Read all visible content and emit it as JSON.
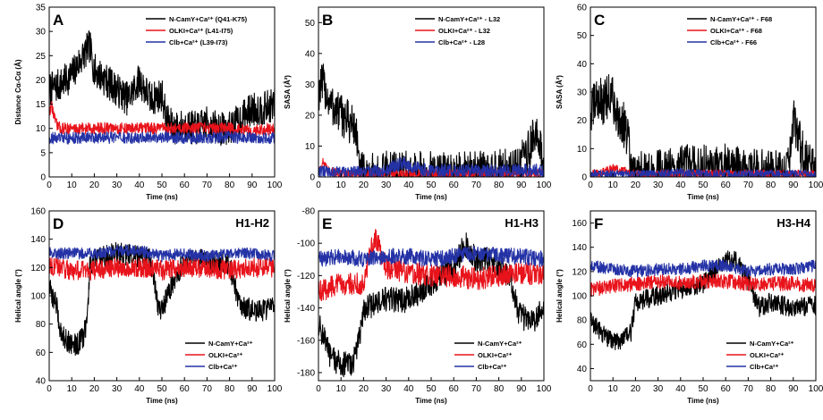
{
  "colors": {
    "black": "#000000",
    "red": "#e8131b",
    "blue": "#2432a6"
  },
  "chart_data": [
    {
      "type": "line",
      "panel": "A",
      "corner_label": "",
      "xlabel": "Time (ns)",
      "ylabel": "Distance Cα-Cα (Å)",
      "xlim": [
        0,
        100
      ],
      "ylim": [
        0,
        35
      ],
      "xticks": [
        0,
        10,
        20,
        30,
        40,
        50,
        60,
        70,
        80,
        90,
        100
      ],
      "yticks": [
        0,
        5,
        10,
        15,
        20,
        25,
        30,
        35
      ],
      "legend_position": "top-right",
      "series": [
        {
          "name": "N-CamY+Ca²⁺ (Q41-K75)",
          "color": "black",
          "noise": 3.5,
          "x": [
            0,
            5,
            10,
            15,
            18,
            20,
            25,
            30,
            35,
            40,
            45,
            50,
            52,
            55,
            60,
            65,
            70,
            75,
            80,
            85,
            90,
            95,
            100
          ],
          "y": [
            18,
            19,
            21,
            25,
            27,
            22,
            20,
            18,
            16,
            20,
            16,
            17,
            12,
            10,
            10.5,
            10,
            11,
            10,
            10,
            12,
            14,
            14,
            15
          ]
        },
        {
          "name": "OLKI+Ca²⁺ (L41-I75)",
          "color": "red",
          "noise": 1.2,
          "x": [
            0,
            1,
            3,
            5,
            10,
            20,
            30,
            40,
            50,
            60,
            70,
            80,
            90,
            100
          ],
          "y": [
            13,
            15,
            11,
            10,
            10,
            10,
            10,
            10,
            10,
            10,
            10,
            10,
            9.5,
            10
          ]
        },
        {
          "name": "Clb+Ca²⁺ (L39-I73)",
          "color": "blue",
          "noise": 1.2,
          "x": [
            0,
            10,
            20,
            30,
            40,
            50,
            60,
            70,
            80,
            90,
            100
          ],
          "y": [
            8,
            8,
            8.2,
            8,
            8,
            8.3,
            8,
            8,
            8.2,
            8,
            8
          ]
        }
      ]
    },
    {
      "type": "line",
      "panel": "B",
      "corner_label": "",
      "xlabel": "Time (ns)",
      "ylabel": "SASA (Å²)",
      "xlim": [
        0,
        100
      ],
      "ylim": [
        0,
        55
      ],
      "xticks": [
        0,
        10,
        20,
        30,
        40,
        50,
        60,
        70,
        80,
        90,
        100
      ],
      "yticks": [
        0,
        10,
        20,
        30,
        40,
        50
      ],
      "legend_position": "top-right",
      "series": [
        {
          "name": "N-CamY+Ca²⁺ - L32",
          "color": "black",
          "noise": 7,
          "x": [
            0,
            2,
            5,
            10,
            15,
            17,
            18,
            20,
            30,
            40,
            50,
            60,
            70,
            80,
            85,
            88,
            90,
            93,
            96,
            98,
            100
          ],
          "y": [
            28,
            30,
            24,
            20,
            17,
            14,
            1.5,
            1,
            1.5,
            1.5,
            1.5,
            1,
            1.5,
            2,
            2.5,
            4,
            6,
            8,
            14,
            10,
            3
          ]
        },
        {
          "name": "OLKI+Ca²⁺ - L32",
          "color": "red",
          "noise": 1.5,
          "x": [
            0,
            2,
            4,
            10,
            20,
            30,
            40,
            50,
            60,
            70,
            80,
            90,
            100
          ],
          "y": [
            2,
            5,
            2,
            1,
            1,
            1,
            1,
            1,
            1,
            1,
            1,
            1,
            1
          ]
        },
        {
          "name": "Clb+Ca²⁺ - L28",
          "color": "blue",
          "noise": 2.2,
          "x": [
            0,
            10,
            20,
            30,
            38,
            40,
            50,
            60,
            70,
            80,
            90,
            100
          ],
          "y": [
            1.5,
            1.5,
            1.5,
            2,
            5,
            3,
            2,
            2,
            2,
            2,
            2,
            2
          ]
        }
      ]
    },
    {
      "type": "line",
      "panel": "C",
      "corner_label": "",
      "xlabel": "Time (ns)",
      "ylabel": "SASA (Å²)",
      "xlim": [
        0,
        100
      ],
      "ylim": [
        0,
        60
      ],
      "xticks": [
        0,
        10,
        20,
        30,
        40,
        50,
        60,
        70,
        80,
        90,
        100
      ],
      "yticks": [
        0,
        10,
        20,
        30,
        40,
        50,
        60
      ],
      "legend_position": "top-right",
      "series": [
        {
          "name": "N-CamY+Ca²⁺ - F68",
          "color": "black",
          "noise": 8,
          "x": [
            0,
            3,
            6,
            9,
            12,
            15,
            17,
            18,
            25,
            35,
            45,
            55,
            60,
            70,
            80,
            88,
            90,
            92,
            95,
            100
          ],
          "y": [
            22,
            28,
            26,
            30,
            22,
            18,
            12,
            1,
            1.5,
            2,
            4,
            3,
            4,
            2,
            2,
            3,
            20,
            14,
            6,
            2
          ]
        },
        {
          "name": "OLKI+Ca²⁺ - F68",
          "color": "red",
          "noise": 1.5,
          "x": [
            0,
            5,
            10,
            20,
            30,
            40,
            50,
            60,
            70,
            80,
            90,
            100
          ],
          "y": [
            1,
            1.5,
            3,
            1,
            1,
            1,
            1,
            1,
            1,
            1,
            1,
            1
          ]
        },
        {
          "name": "Clb+Ca²⁺ - F66",
          "color": "blue",
          "noise": 1.5,
          "x": [
            0,
            10,
            20,
            30,
            40,
            50,
            60,
            70,
            80,
            90,
            100
          ],
          "y": [
            1,
            1,
            1,
            1,
            1.5,
            1,
            1,
            1,
            1,
            1,
            1
          ]
        }
      ]
    },
    {
      "type": "line",
      "panel": "D",
      "corner_label": "H1-H2",
      "xlabel": "Time (ns)",
      "ylabel": "Helical angle (°)",
      "xlim": [
        0,
        100
      ],
      "ylim": [
        40,
        160
      ],
      "xticks": [
        0,
        10,
        20,
        30,
        40,
        50,
        60,
        70,
        80,
        90,
        100
      ],
      "yticks": [
        40,
        60,
        80,
        100,
        120,
        140,
        160
      ],
      "legend_position": "bottom-right",
      "series": [
        {
          "name": "N-CamY+Ca²⁺",
          "color": "black",
          "noise": 8,
          "x": [
            0,
            3,
            5,
            8,
            12,
            15,
            17,
            18,
            20,
            30,
            40,
            45,
            48,
            50,
            55,
            60,
            70,
            80,
            84,
            86,
            90,
            95,
            100
          ],
          "y": [
            105,
            95,
            75,
            68,
            65,
            70,
            85,
            120,
            125,
            130,
            128,
            125,
            95,
            90,
            110,
            125,
            125,
            122,
            95,
            92,
            90,
            90,
            92
          ]
        },
        {
          "name": "OLKI+Ca²⁺",
          "color": "red",
          "noise": 7,
          "x": [
            0,
            10,
            20,
            30,
            40,
            50,
            60,
            70,
            80,
            90,
            100
          ],
          "y": [
            122,
            118,
            118,
            120,
            120,
            118,
            120,
            120,
            118,
            120,
            120
          ]
        },
        {
          "name": "Clb+Ca²⁺",
          "color": "blue",
          "noise": 4,
          "x": [
            0,
            10,
            20,
            30,
            40,
            50,
            60,
            70,
            80,
            90,
            100
          ],
          "y": [
            130,
            130,
            130,
            132,
            132,
            128,
            130,
            128,
            130,
            130,
            128
          ]
        }
      ]
    },
    {
      "type": "line",
      "panel": "E",
      "corner_label": "H1-H3",
      "xlabel": "Time (ns)",
      "ylabel": "Helical angle (°)",
      "xlim": [
        0,
        100
      ],
      "ylim": [
        -185,
        -80
      ],
      "xticks": [
        0,
        10,
        20,
        30,
        40,
        50,
        60,
        70,
        80,
        90,
        100
      ],
      "yticks": [
        -180,
        -160,
        -140,
        -120,
        -100,
        -80
      ],
      "legend_position": "bottom-right",
      "series": [
        {
          "name": "N-CamY+Ca²⁺",
          "color": "black",
          "noise": 8,
          "x": [
            0,
            3,
            5,
            10,
            15,
            18,
            20,
            30,
            40,
            50,
            60,
            65,
            70,
            75,
            80,
            85,
            88,
            90,
            95,
            100
          ],
          "y": [
            -150,
            -160,
            -170,
            -175,
            -175,
            -160,
            -140,
            -135,
            -135,
            -125,
            -115,
            -100,
            -110,
            -110,
            -115,
            -120,
            -140,
            -145,
            -150,
            -140
          ]
        },
        {
          "name": "OLKI+Ca²⁺",
          "color": "red",
          "noise": 7,
          "x": [
            0,
            10,
            20,
            25,
            30,
            40,
            50,
            60,
            70,
            80,
            90,
            100
          ],
          "y": [
            -130,
            -125,
            -125,
            -95,
            -115,
            -118,
            -120,
            -120,
            -122,
            -120,
            -118,
            -120
          ]
        },
        {
          "name": "Clb+Ca²⁺",
          "color": "blue",
          "noise": 5,
          "x": [
            0,
            10,
            20,
            30,
            40,
            50,
            60,
            70,
            80,
            90,
            100
          ],
          "y": [
            -110,
            -108,
            -110,
            -108,
            -108,
            -110,
            -108,
            -106,
            -108,
            -108,
            -110
          ]
        }
      ]
    },
    {
      "type": "line",
      "panel": "F",
      "corner_label": "H3-H4",
      "xlabel": "Time (ns)",
      "ylabel": "Helical angle (°)",
      "xlim": [
        0,
        100
      ],
      "ylim": [
        30,
        170
      ],
      "xticks": [
        0,
        10,
        20,
        30,
        40,
        50,
        60,
        70,
        80,
        90,
        100
      ],
      "yticks": [
        40,
        60,
        80,
        100,
        120,
        140,
        160
      ],
      "legend_position": "bottom-right",
      "series": [
        {
          "name": "N-CamY+Ca²⁺",
          "color": "black",
          "noise": 8,
          "x": [
            0,
            5,
            10,
            15,
            18,
            20,
            30,
            40,
            50,
            60,
            65,
            70,
            75,
            80,
            90,
            100
          ],
          "y": [
            80,
            70,
            62,
            65,
            70,
            95,
            100,
            105,
            110,
            130,
            130,
            112,
            90,
            95,
            90,
            92
          ]
        },
        {
          "name": "OLKI+Ca²⁺",
          "color": "red",
          "noise": 6,
          "x": [
            0,
            10,
            20,
            30,
            40,
            50,
            60,
            70,
            80,
            90,
            100
          ],
          "y": [
            105,
            108,
            110,
            112,
            110,
            112,
            112,
            110,
            110,
            110,
            108
          ]
        },
        {
          "name": "Clb+Ca²⁺",
          "color": "blue",
          "noise": 5,
          "x": [
            0,
            10,
            20,
            30,
            40,
            50,
            60,
            70,
            80,
            90,
            100
          ],
          "y": [
            125,
            122,
            120,
            122,
            122,
            125,
            125,
            120,
            122,
            122,
            125
          ]
        }
      ]
    }
  ]
}
